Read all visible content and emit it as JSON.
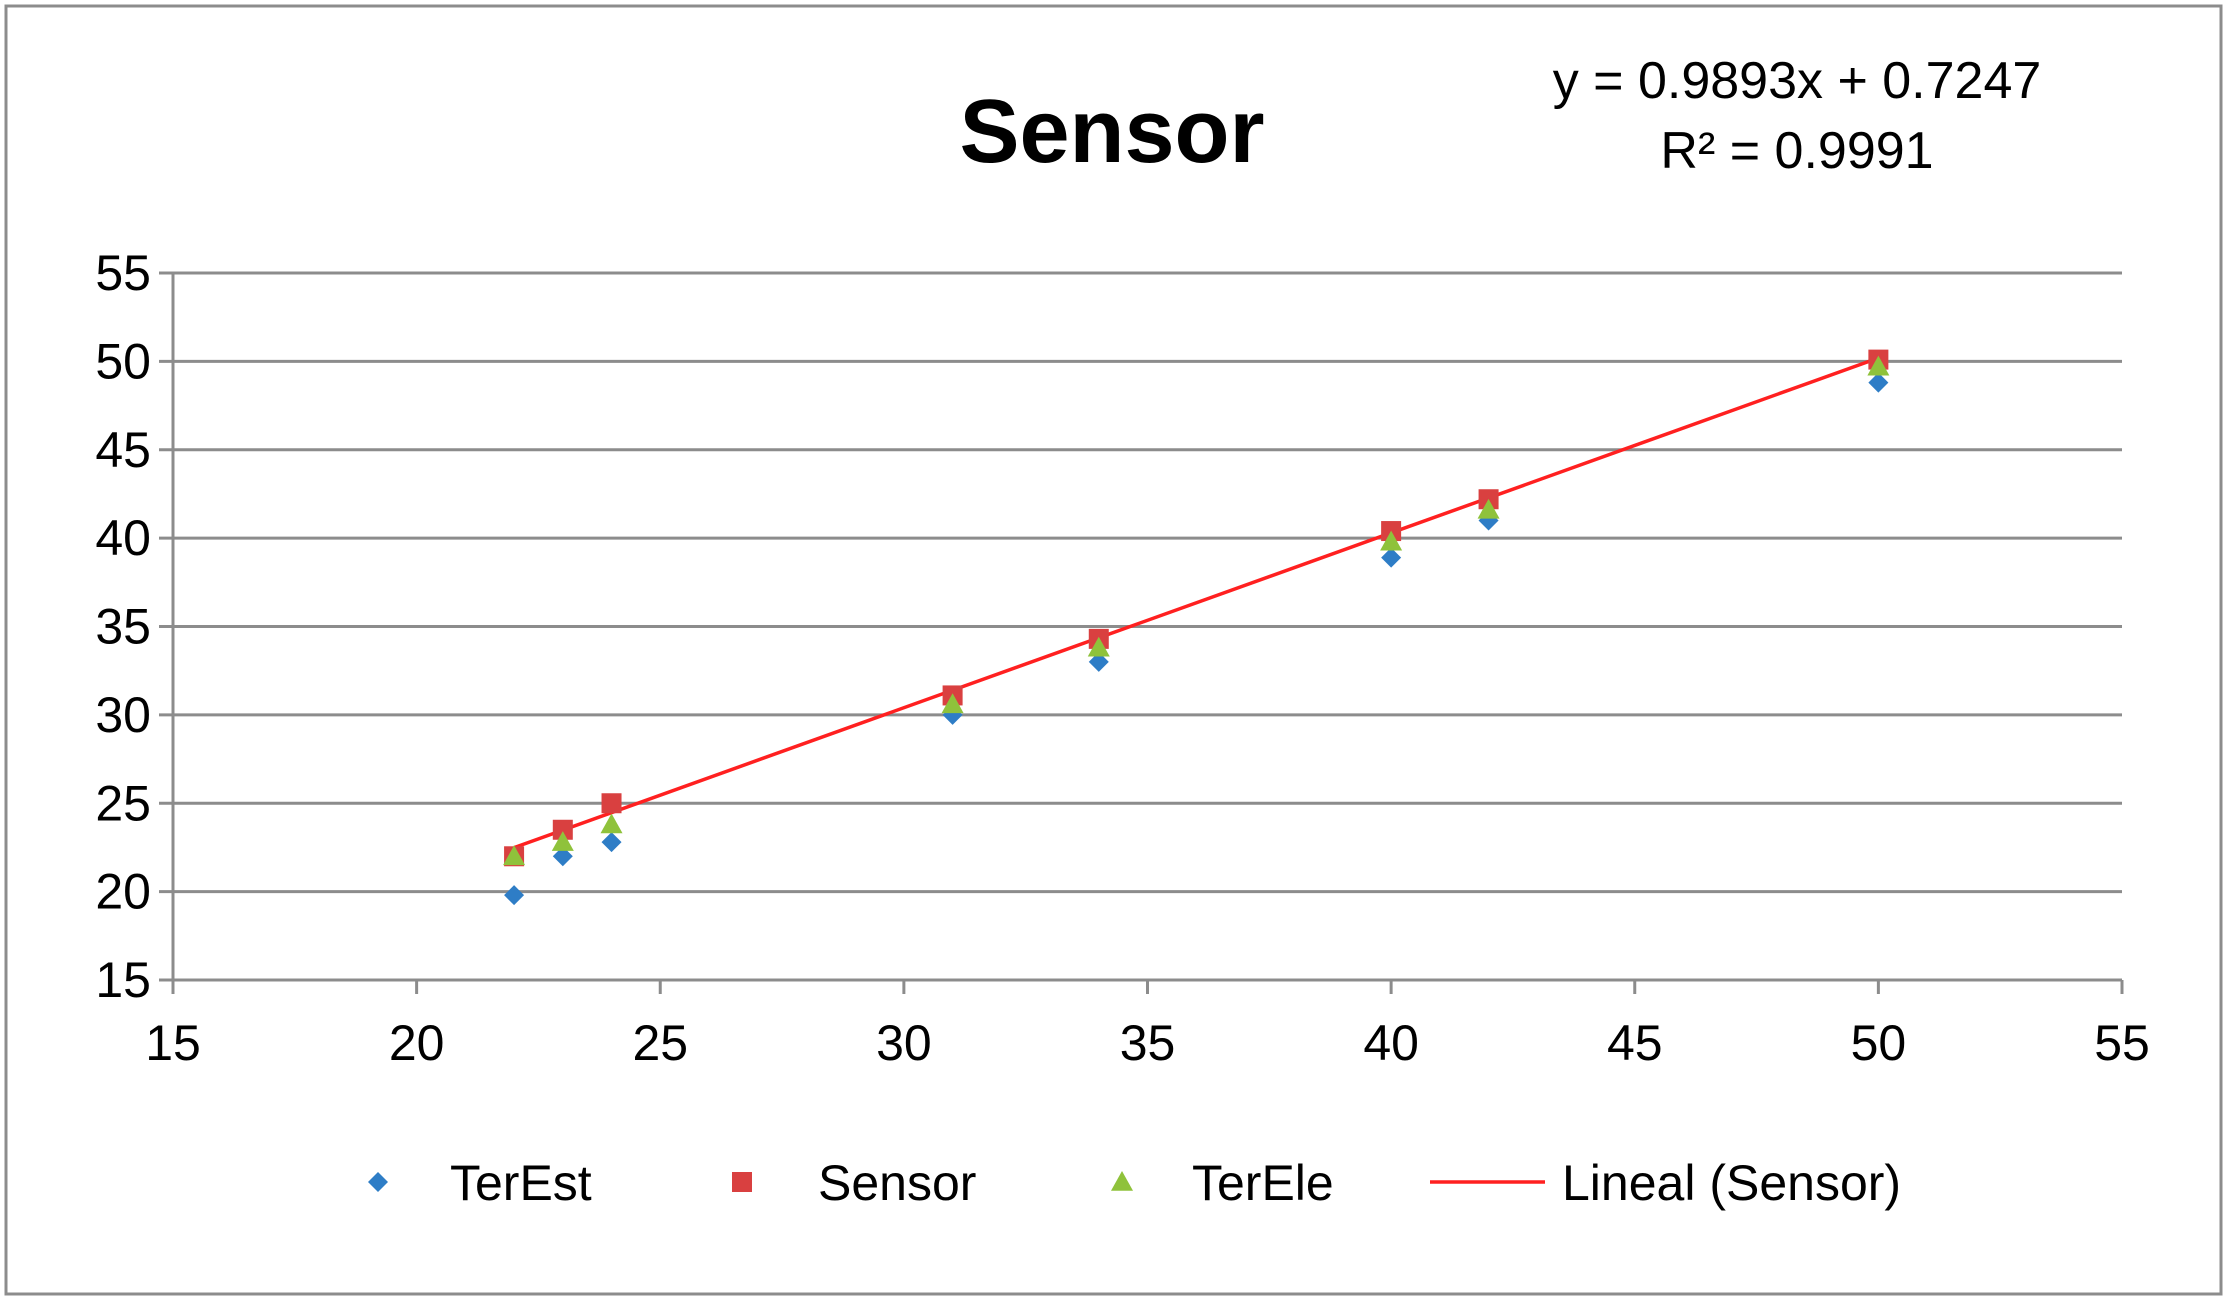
{
  "chart_data": {
    "type": "scatter",
    "title": "Sensor",
    "xlabel": "",
    "ylabel": "",
    "xlim": [
      15,
      55
    ],
    "ylim": [
      15,
      55
    ],
    "x_ticks": [
      15,
      20,
      25,
      30,
      35,
      40,
      45,
      50,
      55
    ],
    "y_ticks": [
      15,
      20,
      25,
      30,
      35,
      40,
      45,
      50,
      55
    ],
    "grid": "horizontal",
    "legend_position": "bottom",
    "series": [
      {
        "name": "TerEst",
        "marker": "diamond",
        "color": "#2e7dc6",
        "points": [
          [
            22,
            19.8
          ],
          [
            23,
            22.0
          ],
          [
            24,
            22.8
          ],
          [
            31,
            30.0
          ],
          [
            34,
            33.0
          ],
          [
            40,
            38.9
          ],
          [
            42,
            41.0
          ],
          [
            50,
            48.8
          ]
        ]
      },
      {
        "name": "Sensor",
        "marker": "square",
        "color": "#d94040",
        "points": [
          [
            22,
            22.0
          ],
          [
            23,
            23.5
          ],
          [
            24,
            25.0
          ],
          [
            31,
            31.1
          ],
          [
            34,
            34.3
          ],
          [
            40,
            40.4
          ],
          [
            42,
            42.2
          ],
          [
            50,
            50.1
          ]
        ]
      },
      {
        "name": "TerEle",
        "marker": "triangle",
        "color": "#8fc23b",
        "points": [
          [
            22,
            22.0
          ],
          [
            23,
            22.8
          ],
          [
            24,
            23.8
          ],
          [
            31,
            30.6
          ],
          [
            34,
            33.8
          ],
          [
            40,
            39.8
          ],
          [
            42,
            41.6
          ],
          [
            50,
            49.7
          ]
        ]
      }
    ],
    "trendline": {
      "name": "Lineal (Sensor)",
      "color": "#ff2020",
      "slope": 0.9893,
      "intercept": 0.7247,
      "x_range": [
        22,
        50
      ],
      "equation": "y = 0.9893x + 0.7247",
      "r_squared": "R² = 0.9991"
    }
  }
}
